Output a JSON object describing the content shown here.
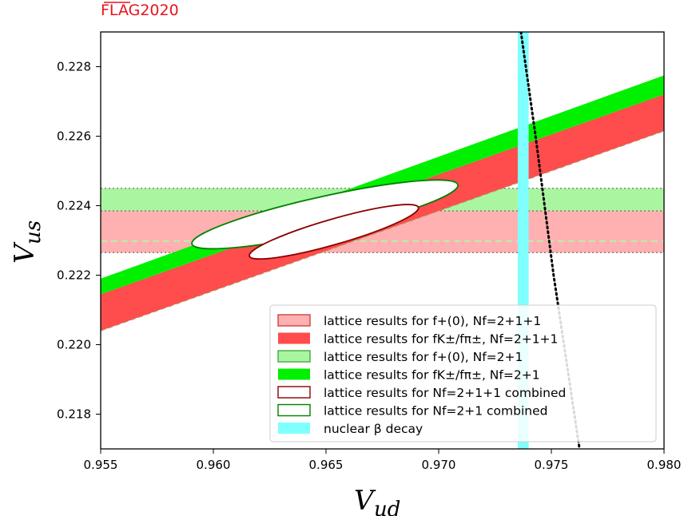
{
  "brand_label": "FLAG2020",
  "chart_data": {
    "type": "area",
    "xlabel": "V_ud",
    "ylabel": "V_us",
    "xlim": [
      0.955,
      0.98
    ],
    "ylim": [
      0.217,
      0.229
    ],
    "xticks": [
      "0.955",
      "0.960",
      "0.965",
      "0.970",
      "0.975",
      "0.980"
    ],
    "yticks": [
      "0.218",
      "0.220",
      "0.222",
      "0.224",
      "0.226",
      "0.228"
    ],
    "legend_position": "lower-right",
    "series": [
      {
        "name": "lattice results for f+(0), Nf=2+1+1",
        "kind": "horizontal-band",
        "y_low": 0.22265,
        "y_high": 0.22385,
        "color": "#ffb0b0",
        "edge": "#cc3333"
      },
      {
        "name": "lattice results for fK±/fπ±, Nf=2+1+1",
        "kind": "sloped-band",
        "lower": [
          [
            0.955,
            0.2204
          ],
          [
            0.98,
            0.22615
          ]
        ],
        "upper": [
          [
            0.955,
            0.22145
          ],
          [
            0.98,
            0.2272
          ]
        ],
        "color": "#ff4c4c"
      },
      {
        "name": "lattice results for f+(0), Nf=2+1",
        "kind": "horizontal-band",
        "y_low": 0.22385,
        "y_high": 0.2245,
        "color": "#aaf5a0",
        "edge": "#339933"
      },
      {
        "name": "lattice results for fK±/fπ±, Nf=2+1",
        "kind": "sloped-band",
        "lower": [
          [
            0.955,
            0.22145
          ],
          [
            0.98,
            0.2272
          ]
        ],
        "upper": [
          [
            0.955,
            0.2219
          ],
          [
            0.98,
            0.22775
          ]
        ],
        "color": "#00f000"
      },
      {
        "name": "lattice results for Nf=2+1+1 combined",
        "kind": "ellipse",
        "points": [
          [
            0.9615,
            0.22255
          ],
          [
            0.965,
            0.22335
          ],
          [
            0.969,
            0.22395
          ],
          [
            0.9675,
            0.22375
          ],
          [
            0.963,
            0.2228
          ]
        ],
        "cx": 0.96535,
        "cy": 0.22325,
        "color": "#8b0000"
      },
      {
        "name": "lattice results for Nf=2+1 combined",
        "kind": "ellipse",
        "points": [
          [
            0.959,
            0.2228
          ],
          [
            0.965,
            0.2238
          ],
          [
            0.9708,
            0.2245
          ],
          [
            0.969,
            0.22435
          ],
          [
            0.961,
            0.223
          ]
        ],
        "cx": 0.96495,
        "cy": 0.22375,
        "color": "#008000"
      },
      {
        "name": "nuclear β decay",
        "kind": "vertical-band",
        "x_low": 0.97365,
        "x_high": 0.97385,
        "color": "#80ffff"
      }
    ],
    "unitarity_curve": [
      [
        0.97365,
        0.229
      ],
      [
        0.9743,
        0.226
      ],
      [
        0.9751,
        0.222
      ],
      [
        0.97625,
        0.217
      ]
    ],
    "f_plus_2p1p1_central": 0.22298
  }
}
